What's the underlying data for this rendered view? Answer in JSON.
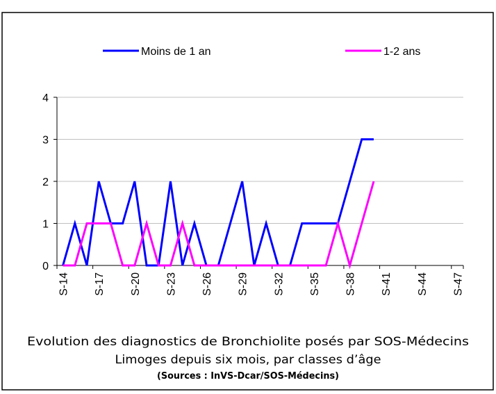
{
  "chart_data": {
    "type": "line",
    "caption": [
      "Evolution des diagnostics de Bronchiolite posés par SOS-Médecins",
      "Limoges depuis six mois, par classes d’âge",
      "(Sources : InVS-Dcar/SOS-Médecins)"
    ],
    "categories": [
      "S-14",
      null,
      null,
      "S-17",
      null,
      null,
      "S-20",
      null,
      null,
      "S-23",
      null,
      null,
      "S-26",
      null,
      null,
      "S-29",
      null,
      null,
      "S-32",
      null,
      null,
      "S-35",
      null,
      null,
      "S-38",
      null,
      null,
      "S-41",
      null,
      null,
      "S-44",
      null,
      null,
      "S-47"
    ],
    "series": [
      {
        "name": "Moins de 1 an",
        "color": "#0000ff",
        "values": [
          0,
          1,
          0,
          2,
          1,
          1,
          2,
          0,
          0,
          2,
          0,
          1,
          0,
          0,
          1,
          2,
          0,
          1,
          0,
          0,
          1,
          1,
          1,
          1,
          2,
          3,
          3,
          null,
          null,
          null,
          null,
          null,
          null,
          null
        ]
      },
      {
        "name": "1-2 ans",
        "color": "#ff00ff",
        "values": [
          0,
          0,
          1,
          1,
          1,
          0,
          0,
          1,
          0,
          0,
          1,
          0,
          0,
          0,
          0,
          0,
          0,
          0,
          0,
          0,
          0,
          0,
          0,
          1,
          0,
          1,
          2,
          null,
          null,
          null,
          null,
          null,
          null,
          null
        ]
      }
    ],
    "ylim": [
      0,
      4
    ],
    "yticks": [
      0,
      1,
      2,
      3,
      4
    ],
    "grid": true
  }
}
